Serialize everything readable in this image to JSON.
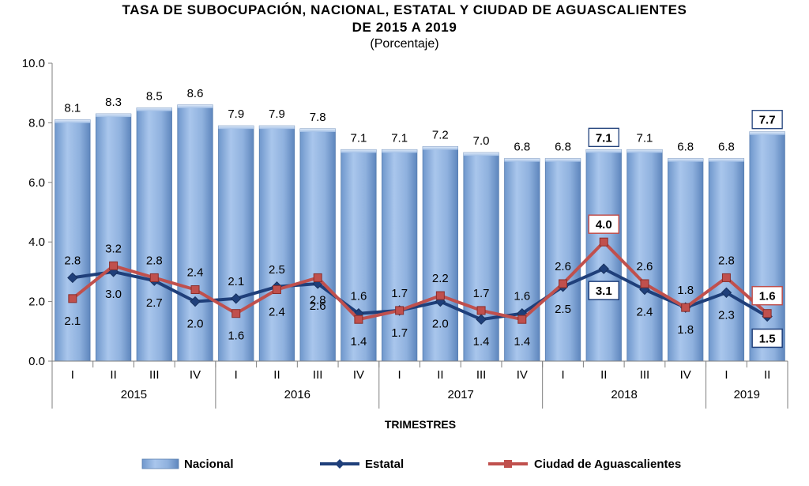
{
  "chart_data": {
    "type": "bar+line",
    "title_line1": "TASA DE SUBOCUPACIÓN,  NACIONAL,  ESTATAL  Y CIUDAD DE AGUASCALIENTES",
    "title_line2": "DE 2015  A 2019",
    "subtitle": "(Porcentaje)",
    "xlabel": "TRIMESTRES",
    "ylim": [
      0,
      10
    ],
    "yticks": [
      "0.0",
      "2.0",
      "4.0",
      "6.0",
      "8.0",
      "10.0"
    ],
    "categories": [
      "I",
      "II",
      "III",
      "IV",
      "I",
      "II",
      "III",
      "IV",
      "I",
      "II",
      "III",
      "IV",
      "I",
      "II",
      "III",
      "IV",
      "I",
      "II"
    ],
    "years": [
      {
        "label": "2015",
        "count": 4
      },
      {
        "label": "2016",
        "count": 4
      },
      {
        "label": "2017",
        "count": 4
      },
      {
        "label": "2018",
        "count": 4
      },
      {
        "label": "2019",
        "count": 2
      }
    ],
    "series": [
      {
        "name": "Nacional",
        "kind": "bar",
        "color": "#8fb4e3",
        "values": [
          8.1,
          8.3,
          8.5,
          8.6,
          7.9,
          7.9,
          7.8,
          7.1,
          7.1,
          7.2,
          7.0,
          6.8,
          6.8,
          7.1,
          7.1,
          6.8,
          6.8,
          7.7
        ],
        "labels": [
          "8.1",
          "8.3",
          "8.5",
          "8.6",
          "7.9",
          "7.9",
          "7.8",
          "7.1",
          "7.1",
          "7.2",
          "7.0",
          "6.8",
          "6.8",
          "7.1",
          "7.1",
          "6.8",
          "6.8",
          "7.7"
        ],
        "boxed": [
          13,
          17
        ]
      },
      {
        "name": "Estatal",
        "kind": "line",
        "color": "#1f3f7a",
        "values": [
          2.8,
          3.0,
          2.7,
          2.0,
          2.1,
          2.5,
          2.6,
          1.6,
          1.7,
          2.0,
          1.4,
          1.6,
          2.5,
          3.1,
          2.4,
          1.8,
          2.3,
          1.5
        ],
        "labels": [
          "2.8",
          "3.0",
          "2.7",
          "2.0",
          "2.1",
          "2.5",
          "2.6",
          "1.6",
          "1.7",
          "2.0",
          "1.4",
          "1.6",
          "2.5",
          "3.1",
          "2.4",
          "1.8",
          "2.3",
          "1.5"
        ],
        "label_pos": [
          "above",
          "below",
          "below",
          "below",
          "above",
          "above",
          "below",
          "above",
          "above",
          "below",
          "below",
          "above",
          "below",
          "below",
          "below",
          "above",
          "below",
          "below"
        ],
        "boxed": [
          13,
          17
        ]
      },
      {
        "name": "Ciudad de Aguascalientes",
        "kind": "line",
        "color": "#c0504d",
        "values": [
          2.1,
          3.2,
          2.8,
          2.4,
          1.6,
          2.4,
          2.8,
          1.4,
          1.7,
          2.2,
          1.7,
          1.4,
          2.6,
          4.0,
          2.6,
          1.8,
          2.8,
          1.6
        ],
        "labels": [
          "2.1",
          "3.2",
          "2.8",
          "2.4",
          "1.6",
          "2.4",
          "2.8",
          "1.4",
          "1.7",
          "2.2",
          "1.7",
          "1.4",
          "2.6",
          "4.0",
          "2.6",
          "1.8",
          "2.8",
          "1.6"
        ],
        "label_pos": [
          "below",
          "above",
          "above",
          "above",
          "below",
          "below",
          "below",
          "below",
          "below",
          "above",
          "above",
          "below",
          "above",
          "above",
          "above",
          "below",
          "above",
          "above"
        ],
        "boxed": [
          13,
          17
        ]
      }
    ],
    "legend_position": "bottom"
  }
}
